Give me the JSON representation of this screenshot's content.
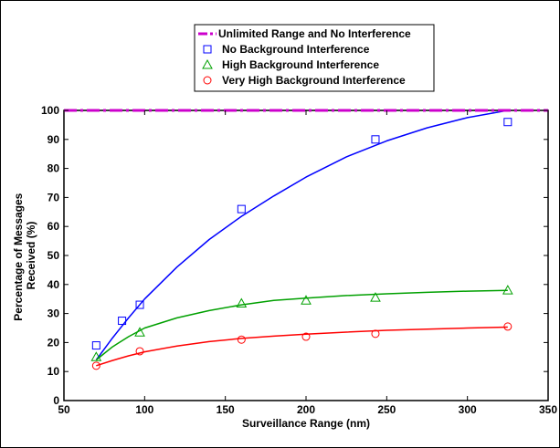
{
  "chart_data": {
    "type": "scatter",
    "xlabel": "Surveillance Range (nm)",
    "ylabel_lines": [
      "Percentage of Messages",
      "Received (%)"
    ],
    "xlim": [
      50,
      350
    ],
    "ylim": [
      0,
      100
    ],
    "xticks": [
      "50",
      "100",
      "150",
      "200",
      "250",
      "300",
      "350"
    ],
    "yticks": [
      "0",
      "10",
      "20",
      "30",
      "40",
      "50",
      "60",
      "70",
      "80",
      "90",
      "100"
    ],
    "grid": false,
    "legend_position": "top-center",
    "reference_line": {
      "name": "Unlimited Range and No Interference",
      "y": 100,
      "color": "#cc00cc",
      "style": "dash-dot"
    },
    "series": [
      {
        "name": "No Background Interference",
        "marker": "square",
        "color": "#0000ff",
        "x": [
          70,
          86,
          97,
          160,
          243,
          325
        ],
        "y": [
          19,
          27.5,
          33,
          66,
          90,
          96
        ],
        "fit_x": [
          70,
          80,
          90,
          100,
          120,
          140,
          160,
          180,
          200,
          225,
          250,
          275,
          300,
          325
        ],
        "fit_y": [
          14,
          21.5,
          28.5,
          35,
          46,
          55.5,
          63.5,
          70.5,
          77,
          84,
          89.5,
          94,
          97.5,
          100
        ]
      },
      {
        "name": "High Background Interference",
        "marker": "triangle",
        "color": "#00a000",
        "x": [
          70,
          97,
          160,
          200,
          243,
          325
        ],
        "y": [
          15,
          23.5,
          33.5,
          34.5,
          35.5,
          38
        ],
        "fit_x": [
          70,
          80,
          90,
          100,
          120,
          140,
          160,
          180,
          200,
          225,
          250,
          275,
          300,
          325
        ],
        "fit_y": [
          14,
          18.5,
          22,
          25,
          28.5,
          31,
          33,
          34.5,
          35.3,
          36.2,
          36.8,
          37.3,
          37.7,
          38
        ]
      },
      {
        "name": "Very High Background Interference",
        "marker": "circle",
        "color": "#ff0000",
        "x": [
          70,
          97,
          160,
          200,
          243,
          325
        ],
        "y": [
          12,
          17,
          21,
          22,
          23,
          25.5
        ],
        "fit_x": [
          70,
          80,
          90,
          100,
          120,
          140,
          160,
          180,
          200,
          225,
          250,
          275,
          300,
          325
        ],
        "fit_y": [
          12,
          13.8,
          15.4,
          16.8,
          18.8,
          20.3,
          21.4,
          22.2,
          22.9,
          23.6,
          24.2,
          24.6,
          25,
          25.3
        ]
      }
    ]
  }
}
